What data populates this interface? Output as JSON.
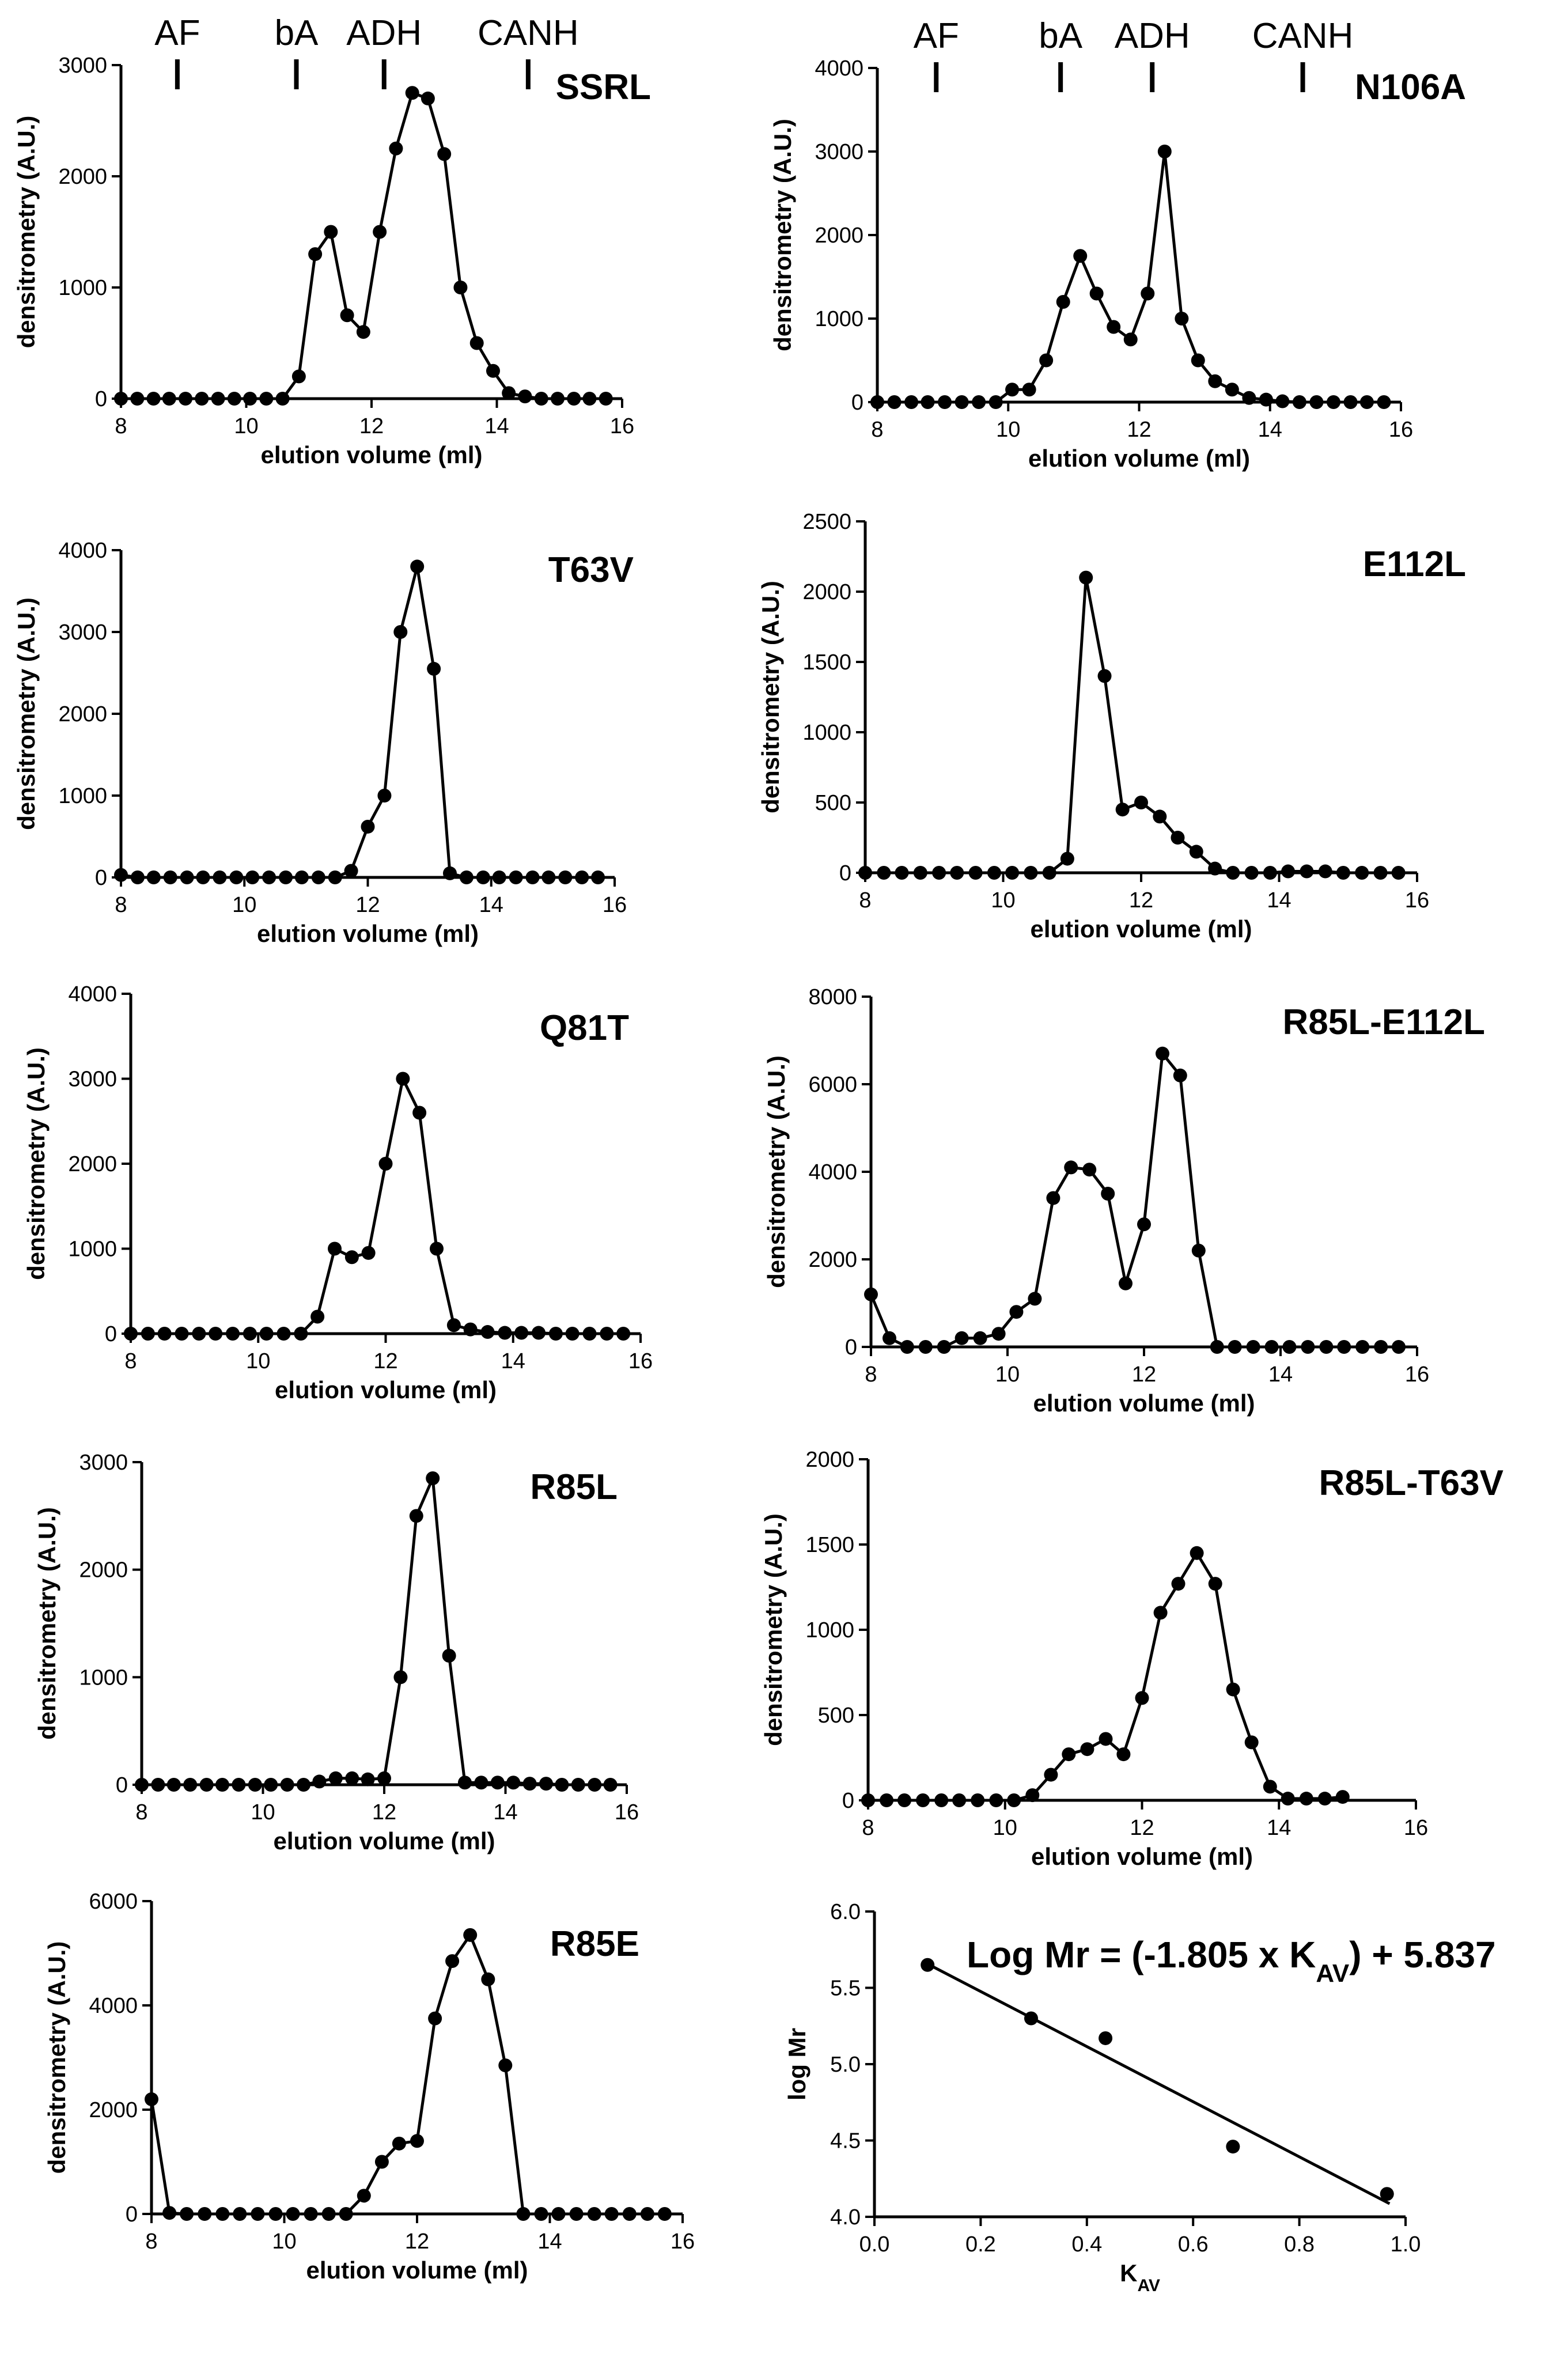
{
  "figure": {
    "colors": {
      "ink": "#000000",
      "background": "#ffffff"
    }
  },
  "chart_data": [
    {
      "id": "ssrl",
      "type": "line",
      "title": "SSRL",
      "xlabel": "elution volume (ml)",
      "ylabel": "densitrometry (A.U.)",
      "xlim": [
        8,
        16
      ],
      "ylim": [
        0,
        3000
      ],
      "xticks": [
        8,
        10,
        12,
        14,
        16
      ],
      "yticks": [
        0,
        1000,
        2000,
        3000
      ],
      "markers": [
        {
          "label": "AF",
          "x": 8.9
        },
        {
          "label": "bA",
          "x": 10.8
        },
        {
          "label": "ADH",
          "x": 12.2
        },
        {
          "label": "CANH",
          "x": 14.5
        }
      ],
      "x": [
        8.0,
        8.26,
        8.52,
        8.77,
        9.03,
        9.29,
        9.55,
        9.81,
        10.06,
        10.32,
        10.58,
        10.84,
        11.1,
        11.35,
        11.61,
        11.87,
        12.13,
        12.39,
        12.65,
        12.9,
        13.16,
        13.42,
        13.68,
        13.94,
        14.19,
        14.45,
        14.71,
        14.97,
        15.23,
        15.48,
        15.74
      ],
      "y": [
        0,
        0,
        0,
        0,
        0,
        0,
        0,
        0,
        0,
        0,
        0,
        200,
        1300,
        1500,
        750,
        600,
        1500,
        2250,
        2750,
        2700,
        2200,
        1000,
        500,
        250,
        50,
        20,
        0,
        0,
        0,
        0,
        0
      ]
    },
    {
      "id": "n106a",
      "type": "line",
      "title": "N106A",
      "xlabel": "elution volume (ml)",
      "ylabel": "densitrometry (A.U.)",
      "xlim": [
        8,
        16
      ],
      "ylim": [
        0,
        4000
      ],
      "xticks": [
        8,
        10,
        12,
        14,
        16
      ],
      "yticks": [
        0,
        1000,
        2000,
        3000,
        4000
      ],
      "markers": [
        {
          "label": "AF",
          "x": 8.9
        },
        {
          "label": "bA",
          "x": 10.8
        },
        {
          "label": "ADH",
          "x": 12.2
        },
        {
          "label": "CANH",
          "x": 14.5
        }
      ],
      "x": [
        8.0,
        8.26,
        8.52,
        8.77,
        9.03,
        9.29,
        9.55,
        9.81,
        10.06,
        10.32,
        10.58,
        10.84,
        11.1,
        11.35,
        11.61,
        11.87,
        12.13,
        12.39,
        12.65,
        12.9,
        13.16,
        13.42,
        13.68,
        13.94,
        14.19,
        14.45,
        14.71,
        14.97,
        15.23,
        15.48,
        15.74
      ],
      "y": [
        0,
        0,
        0,
        0,
        0,
        0,
        0,
        0,
        150,
        150,
        500,
        1200,
        1750,
        1300,
        900,
        750,
        1300,
        3000,
        1000,
        500,
        250,
        150,
        50,
        30,
        10,
        0,
        0,
        0,
        0,
        0,
        0
      ]
    },
    {
      "id": "t63v",
      "type": "line",
      "title": "T63V",
      "xlabel": "elution volume (ml)",
      "ylabel": "densitrometry (A.U.)",
      "xlim": [
        8,
        16
      ],
      "ylim": [
        0,
        4000
      ],
      "xticks": [
        8,
        10,
        12,
        14,
        16
      ],
      "yticks": [
        0,
        1000,
        2000,
        3000,
        4000
      ],
      "x": [
        8.0,
        8.27,
        8.53,
        8.8,
        9.07,
        9.33,
        9.6,
        9.87,
        10.13,
        10.4,
        10.67,
        10.93,
        11.2,
        11.47,
        11.73,
        12.0,
        12.27,
        12.53,
        12.8,
        13.07,
        13.33,
        13.6,
        13.87,
        14.13,
        14.4,
        14.67,
        14.93,
        15.2,
        15.47,
        15.73
      ],
      "y": [
        30,
        0,
        0,
        0,
        0,
        0,
        0,
        0,
        0,
        0,
        0,
        0,
        0,
        0,
        80,
        620,
        1000,
        3000,
        3800,
        2550,
        50,
        0,
        0,
        0,
        0,
        0,
        0,
        0,
        0,
        0
      ]
    },
    {
      "id": "e112l",
      "type": "line",
      "title": "E112L",
      "xlabel": "elution volume (ml)",
      "ylabel": "densitrometry (A.U.)",
      "xlim": [
        8,
        16
      ],
      "ylim": [
        0,
        2500
      ],
      "xticks": [
        8,
        10,
        12,
        14,
        16
      ],
      "yticks": [
        0,
        500,
        1000,
        1500,
        2000,
        2500
      ],
      "x": [
        8.0,
        8.27,
        8.53,
        8.8,
        9.07,
        9.33,
        9.6,
        9.87,
        10.13,
        10.4,
        10.67,
        10.93,
        11.2,
        11.47,
        11.73,
        12.0,
        12.27,
        12.53,
        12.8,
        13.07,
        13.33,
        13.6,
        13.87,
        14.13,
        14.4,
        14.67,
        14.93,
        15.2,
        15.47,
        15.73
      ],
      "y": [
        0,
        0,
        0,
        0,
        0,
        0,
        0,
        0,
        0,
        0,
        0,
        100,
        2100,
        1400,
        450,
        500,
        400,
        250,
        150,
        30,
        0,
        0,
        0,
        10,
        10,
        10,
        0,
        0,
        0,
        0
      ]
    },
    {
      "id": "q81t",
      "type": "line",
      "title": "Q81T",
      "xlabel": "elution volume (ml)",
      "ylabel": "densitrometry (A.U.)",
      "xlim": [
        8,
        16
      ],
      "ylim": [
        0,
        4000
      ],
      "xticks": [
        8,
        10,
        12,
        14,
        16
      ],
      "yticks": [
        0,
        1000,
        2000,
        3000,
        4000
      ],
      "x": [
        8.0,
        8.27,
        8.53,
        8.8,
        9.07,
        9.33,
        9.6,
        9.87,
        10.13,
        10.4,
        10.67,
        10.93,
        11.2,
        11.47,
        11.73,
        12.0,
        12.27,
        12.53,
        12.8,
        13.07,
        13.33,
        13.6,
        13.87,
        14.13,
        14.4,
        14.67,
        14.93,
        15.2,
        15.47,
        15.73
      ],
      "y": [
        0,
        0,
        0,
        0,
        0,
        0,
        0,
        0,
        0,
        0,
        0,
        200,
        1000,
        900,
        950,
        2000,
        3000,
        2600,
        1000,
        100,
        50,
        20,
        10,
        10,
        10,
        0,
        0,
        0,
        0,
        0
      ]
    },
    {
      "id": "r85l-e112l",
      "type": "line",
      "title": "R85L-E112L",
      "xlabel": "elution volume (ml)",
      "ylabel": "densitrometry (A.U.)",
      "xlim": [
        8,
        16
      ],
      "ylim": [
        0,
        8000
      ],
      "xticks": [
        8,
        10,
        12,
        14,
        16
      ],
      "yticks": [
        0,
        2000,
        4000,
        6000,
        8000
      ],
      "x": [
        8.0,
        8.27,
        8.53,
        8.8,
        9.07,
        9.33,
        9.6,
        9.87,
        10.13,
        10.4,
        10.67,
        10.93,
        11.2,
        11.47,
        11.73,
        12.0,
        12.27,
        12.53,
        12.8,
        13.07,
        13.33,
        13.6,
        13.87,
        14.13,
        14.4,
        14.67,
        14.93,
        15.2,
        15.47,
        15.73
      ],
      "y": [
        1200,
        200,
        0,
        0,
        0,
        200,
        200,
        300,
        800,
        1100,
        3400,
        4100,
        4050,
        3500,
        1450,
        2800,
        6700,
        6200,
        2200,
        0,
        0,
        0,
        0,
        0,
        0,
        0,
        0,
        0,
        0,
        0
      ]
    },
    {
      "id": "r85l",
      "type": "line",
      "title": "R85L",
      "xlabel": "elution volume (ml)",
      "ylabel": "densitrometry (A.U.)",
      "xlim": [
        8,
        16
      ],
      "ylim": [
        0,
        3000
      ],
      "xticks": [
        8,
        10,
        12,
        14,
        16
      ],
      "yticks": [
        0,
        1000,
        2000,
        3000
      ],
      "x": [
        8.0,
        8.27,
        8.53,
        8.8,
        9.07,
        9.33,
        9.6,
        9.87,
        10.13,
        10.4,
        10.67,
        10.93,
        11.2,
        11.47,
        11.73,
        12.0,
        12.27,
        12.53,
        12.8,
        13.07,
        13.33,
        13.6,
        13.87,
        14.13,
        14.4,
        14.67,
        14.93,
        15.2,
        15.47,
        15.73
      ],
      "y": [
        0,
        0,
        0,
        0,
        0,
        0,
        0,
        0,
        0,
        0,
        0,
        30,
        60,
        60,
        50,
        60,
        1000,
        2500,
        2850,
        1200,
        20,
        20,
        20,
        20,
        10,
        10,
        0,
        0,
        0,
        0
      ]
    },
    {
      "id": "r85l-t63v",
      "type": "line",
      "title": "R85L-T63V",
      "xlabel": "elution volume (ml)",
      "ylabel": "densitrometry (A.U.)",
      "xlim": [
        8,
        16
      ],
      "ylim": [
        0,
        2000
      ],
      "xticks": [
        8,
        10,
        12,
        14,
        16
      ],
      "yticks": [
        0,
        500,
        1000,
        1500,
        2000
      ],
      "x": [
        8.0,
        8.27,
        8.53,
        8.8,
        9.07,
        9.33,
        9.6,
        9.87,
        10.13,
        10.4,
        10.67,
        10.93,
        11.2,
        11.47,
        11.73,
        12.0,
        12.27,
        12.53,
        12.8,
        13.07,
        13.33,
        13.6,
        13.87,
        14.13,
        14.4,
        14.67,
        14.93
      ],
      "y": [
        0,
        0,
        0,
        0,
        0,
        0,
        0,
        0,
        0,
        30,
        150,
        270,
        300,
        360,
        270,
        600,
        1100,
        1270,
        1450,
        1270,
        650,
        340,
        80,
        10,
        10,
        10,
        20
      ]
    },
    {
      "id": "r85e",
      "type": "line",
      "title": "R85E",
      "xlabel": "elution volume (ml)",
      "ylabel": "densitrometry (A.U.)",
      "xlim": [
        8,
        16
      ],
      "ylim": [
        0,
        6000
      ],
      "xticks": [
        8,
        10,
        12,
        14,
        16
      ],
      "yticks": [
        0,
        2000,
        4000,
        6000
      ],
      "x": [
        8.0,
        8.27,
        8.53,
        8.8,
        9.07,
        9.33,
        9.6,
        9.87,
        10.13,
        10.4,
        10.67,
        10.93,
        11.2,
        11.47,
        11.73,
        12.0,
        12.27,
        12.53,
        12.8,
        13.07,
        13.33,
        13.6,
        13.87,
        14.13,
        14.4,
        14.67,
        14.93,
        15.2,
        15.47,
        15.73
      ],
      "y": [
        2200,
        20,
        0,
        0,
        0,
        0,
        0,
        0,
        0,
        0,
        0,
        0,
        350,
        1000,
        1350,
        1400,
        3750,
        4850,
        5350,
        4500,
        2850,
        0,
        0,
        0,
        0,
        0,
        0,
        0,
        0,
        0
      ]
    },
    {
      "id": "calibration",
      "type": "scatter",
      "title": "Log Mr = (-1.805 x K",
      "title_subscript": "AV",
      "title_suffix": ") + 5.837",
      "xlabel": "K",
      "xlabel_subscript": "AV",
      "ylabel": "log Mr",
      "xlim": [
        0.0,
        1.0
      ],
      "ylim": [
        4.0,
        6.0
      ],
      "xticks": [
        0.0,
        0.2,
        0.4,
        0.6,
        0.8,
        1.0
      ],
      "yticks": [
        4.0,
        4.5,
        5.0,
        5.5,
        6.0
      ],
      "x": [
        0.1,
        0.295,
        0.435,
        0.675,
        0.965
      ],
      "y": [
        5.65,
        5.3,
        5.17,
        4.46,
        4.15
      ],
      "fit": {
        "slope": -1.805,
        "intercept": 5.837,
        "x_range": [
          0.1,
          0.97
        ]
      }
    }
  ]
}
